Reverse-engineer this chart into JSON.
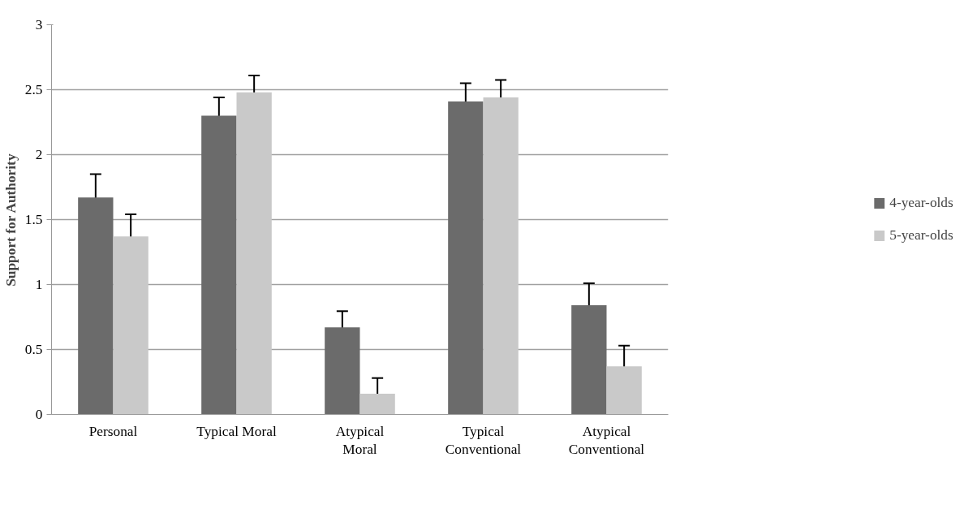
{
  "chart_data": {
    "type": "bar",
    "ylabel": "Support for Authority",
    "categories": [
      "Personal",
      "Typical Moral",
      "Atypical Moral",
      "Typical Conventional",
      "Atypical Conventional"
    ],
    "series": [
      {
        "name": "4-year-olds",
        "color": "#6b6b6b",
        "values": [
          1.67,
          2.3,
          0.67,
          2.41,
          0.84
        ],
        "errors": [
          0.18,
          0.14,
          0.125,
          0.14,
          0.17
        ]
      },
      {
        "name": "5-year-olds",
        "color": "#c9c9c9",
        "values": [
          1.37,
          2.48,
          0.16,
          2.44,
          0.37
        ],
        "errors": [
          0.17,
          0.13,
          0.12,
          0.135,
          0.16
        ]
      }
    ],
    "ylim": [
      0,
      3
    ],
    "yticks": [
      0,
      0.5,
      1,
      1.5,
      2,
      2.5,
      3
    ],
    "grid": "y",
    "legend": "right"
  }
}
